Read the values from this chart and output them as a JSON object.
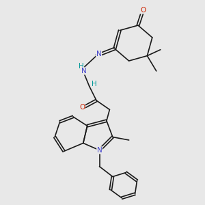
{
  "background_color": "#e8e8e8",
  "figsize": [
    3.0,
    3.0
  ],
  "dpi": 100,
  "bond_color": "#1a1a1a",
  "bond_lw": 1.2,
  "atom_colors": {
    "N": "#4444cc",
    "O": "#cc2200",
    "N_hydrazide": "#009999"
  },
  "font_size": 7.5
}
